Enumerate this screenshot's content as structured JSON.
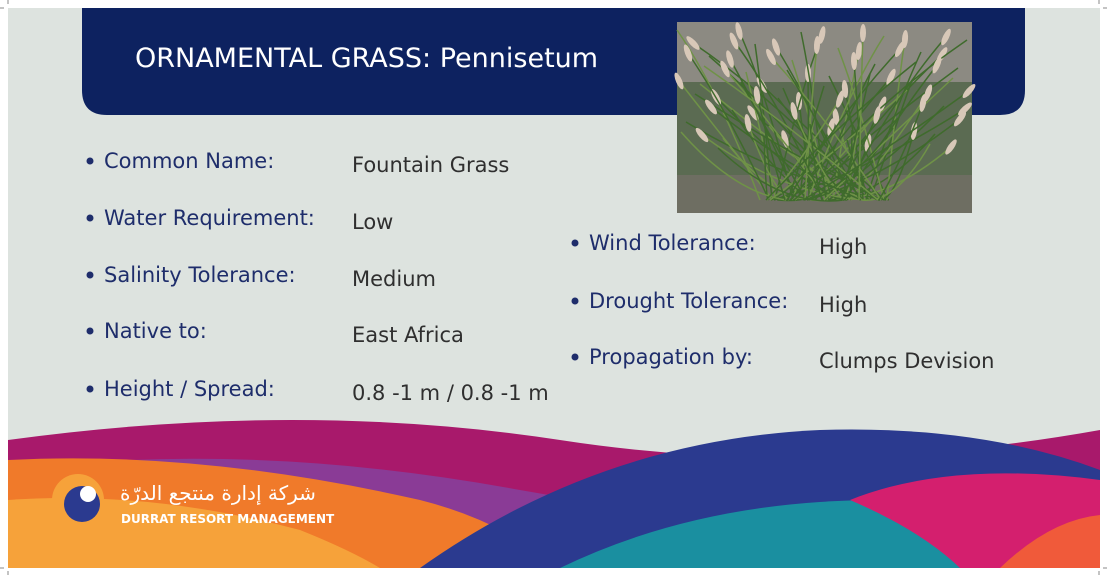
{
  "header": {
    "title": "ORNAMENTAL GRASS: Pennisetum"
  },
  "left_list": [
    {
      "label": "Common Name:",
      "value": "Fountain Grass"
    },
    {
      "label": "Water Requirement:",
      "value": "Low"
    },
    {
      "label": "Salinity Tolerance:",
      "value": "Medium"
    },
    {
      "label": "Native to:",
      "value": "East Africa"
    },
    {
      "label": "Height / Spread:",
      "value": "0.8 -1 m / 0.8 -1 m"
    }
  ],
  "right_list": [
    {
      "label": "Wind Tolerance:",
      "value": "High"
    },
    {
      "label": "Drought Tolerance:",
      "value": "High"
    },
    {
      "label": "Propagation by:",
      "value": "Clumps Devision"
    }
  ],
  "logo": {
    "arabic": "شركة إدارة منتجع الدرّة",
    "english": "DURRAT RESORT MANAGEMENT"
  }
}
